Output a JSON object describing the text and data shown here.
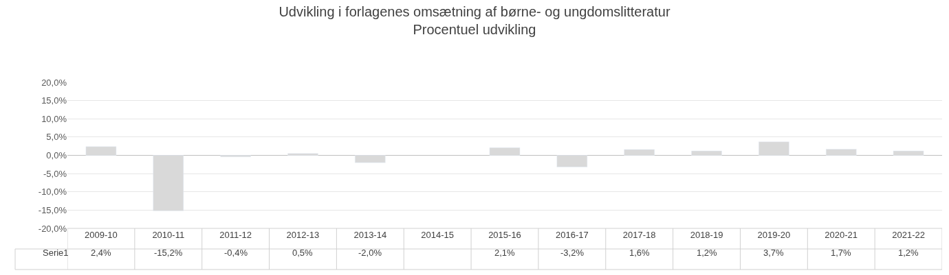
{
  "chart_data": {
    "type": "bar",
    "title": "Udvikling i forlagenes omsætning af børne- og ungdomslitteratur",
    "subtitle": "Procentuel udvikling",
    "categories": [
      "2009-10",
      "2010-11",
      "2011-12",
      "2012-13",
      "2013-14",
      "2014-15",
      "2015-16",
      "2016-17",
      "2017-18",
      "2018-19",
      "2019-20",
      "2020-21",
      "2021-22"
    ],
    "series": [
      {
        "name": "Serie1",
        "color": "#d9d9d9",
        "values": [
          2.4,
          -15.2,
          -0.4,
          0.5,
          -2.0,
          null,
          2.1,
          -3.2,
          1.6,
          1.2,
          3.7,
          1.7,
          1.2
        ],
        "value_labels": [
          "2,4%",
          "-15,2%",
          "-0,4%",
          "0,5%",
          "-2,0%",
          null,
          "2,1%",
          "-3,2%",
          "1,6%",
          "1,2%",
          "3,7%",
          "1,7%",
          "1,2%"
        ]
      }
    ],
    "ylim": [
      -20,
      20
    ],
    "yticks": [
      {
        "value": -20,
        "label": "-20,0%"
      },
      {
        "value": -15,
        "label": "-15,0%"
      },
      {
        "value": -10,
        "label": "-10,0%"
      },
      {
        "value": -5,
        "label": "-5,0%"
      },
      {
        "value": 0,
        "label": "0,0%"
      },
      {
        "value": 5,
        "label": "5,0%"
      },
      {
        "value": 10,
        "label": "10,0%"
      },
      {
        "value": 15,
        "label": "15,0%"
      },
      {
        "value": 20,
        "label": "20,0%"
      }
    ],
    "grid": "y",
    "legend": false
  }
}
